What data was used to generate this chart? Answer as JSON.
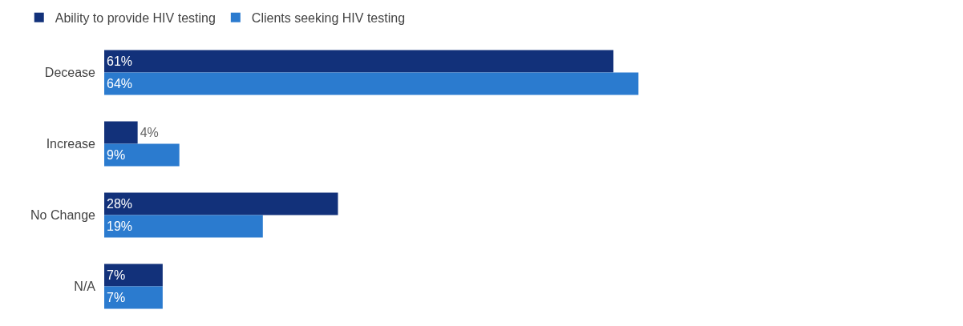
{
  "chart_data": {
    "type": "bar",
    "orientation": "horizontal",
    "categories": [
      "Decease",
      "Increase",
      "No Change",
      "N/A"
    ],
    "series": [
      {
        "name": "Ability to provide HIV testing",
        "color": "#12317a",
        "values": [
          61,
          4,
          28,
          7
        ],
        "value_labels": [
          "61%",
          "4%",
          "28%",
          "7%"
        ]
      },
      {
        "name": "Clients seeking HIV testing",
        "color": "#2b7bcf",
        "values": [
          64,
          9,
          19,
          7
        ],
        "value_labels": [
          "64%",
          "9%",
          "19%",
          "7%"
        ]
      }
    ],
    "legend": "top left"
  }
}
